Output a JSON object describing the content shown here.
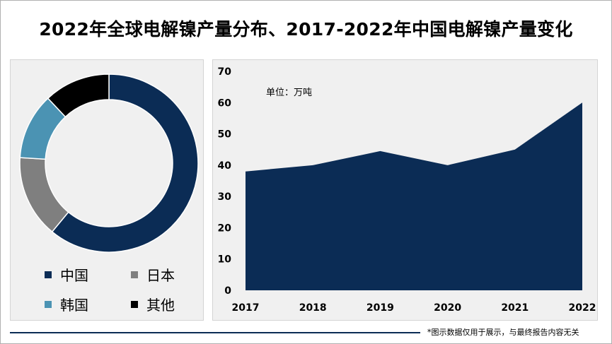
{
  "title": "2022年全球电解镍产量分布、2017-2022年中国电解镍产量变化",
  "footer_note": "*图示数据仅用于展示，与最终报告内容无关",
  "colors": {
    "navy": "#0b2c55",
    "gray": "#7f7f7f",
    "teal": "#4b93b3",
    "black": "#000000",
    "panel": "#f0f0f0"
  },
  "chart_data": [
    {
      "type": "pie",
      "donut": true,
      "title": "",
      "legend_position": "bottom",
      "slices": [
        {
          "label": "中国",
          "value": 61,
          "color": "#0b2c55"
        },
        {
          "label": "日本",
          "value": 15,
          "color": "#7f7f7f"
        },
        {
          "label": "韩国",
          "value": 12,
          "color": "#4b93b3"
        },
        {
          "label": "其他",
          "value": 12,
          "color": "#000000"
        }
      ]
    },
    {
      "type": "area",
      "title": "",
      "unit_label": "单位：万吨",
      "x": [
        "2017",
        "2018",
        "2019",
        "2020",
        "2021",
        "2022"
      ],
      "values": [
        38,
        40,
        44.5,
        40,
        45,
        60
      ],
      "ylim": [
        0,
        70
      ],
      "yticks": [
        0,
        10,
        20,
        30,
        40,
        50,
        60,
        70
      ],
      "grid": false,
      "color": "#0b2c55"
    }
  ]
}
